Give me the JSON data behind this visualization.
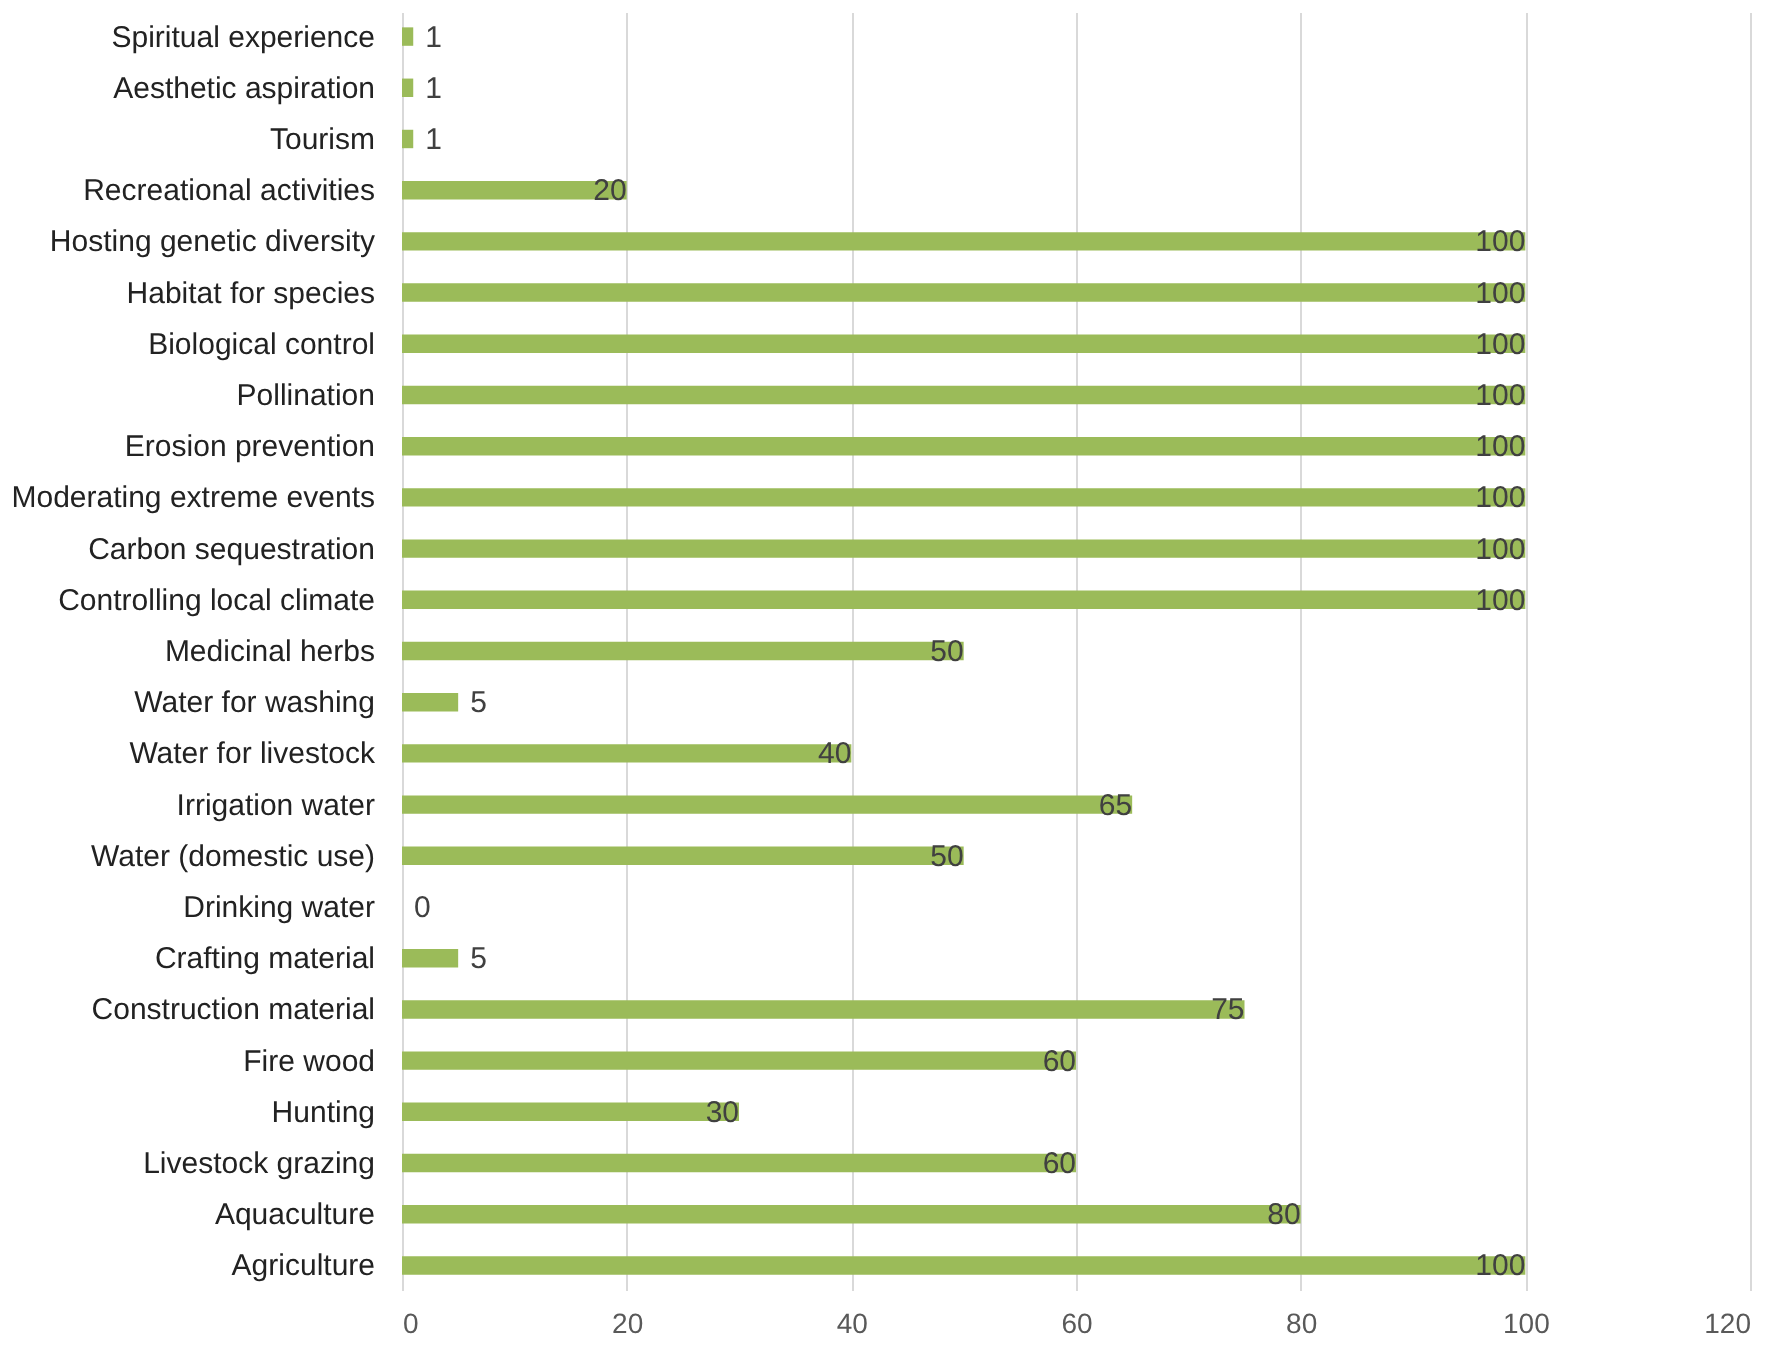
{
  "chart_data": {
    "type": "bar",
    "orientation": "horizontal",
    "categories": [
      "Spiritual experience",
      "Aesthetic aspiration",
      "Tourism",
      "Recreational activities",
      "Hosting genetic diversity",
      "Habitat for species",
      "Biological control",
      "Pollination",
      "Erosion prevention",
      "Moderating extreme events",
      "Carbon sequestration",
      "Controlling local climate",
      "Medicinal herbs",
      "Water for washing",
      "Water for livestock",
      "Irrigation water",
      "Water (domestic use)",
      "Drinking water",
      "Crafting material",
      "Construction material",
      "Fire wood",
      "Hunting",
      "Livestock grazing",
      "Aquaculture",
      "Agriculture"
    ],
    "values": [
      1,
      1,
      1,
      20,
      100,
      100,
      100,
      100,
      100,
      100,
      100,
      100,
      50,
      5,
      40,
      65,
      50,
      0,
      5,
      75,
      60,
      30,
      60,
      80,
      100
    ],
    "color": "#9bbb59",
    "xlim": [
      0,
      120
    ],
    "xticks": [
      0,
      20,
      40,
      60,
      80,
      100,
      120
    ],
    "grid": "x",
    "data_labels": true
  }
}
